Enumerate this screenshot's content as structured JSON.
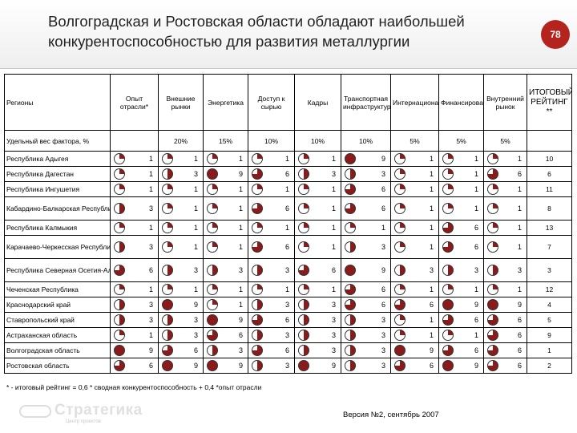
{
  "slide": {
    "title": "Волгоградская и Ростовская области обладают наибольшей конкурентоспособностью для развития металлургии",
    "page_number": "78",
    "footnote": "* - итоговый рейтинг = 0,6 * сводная конкурентоспособность + 0,4 *опыт отрасли",
    "version": "Версия №2, сентябрь 2007",
    "logo_text": "Стратегика",
    "logo_sub": "Центр проектов",
    "pie_fill_color": "#8b1a1a"
  },
  "table": {
    "region_header": "Регионы",
    "headers": [
      "Опыт отрасли*",
      "Внешние рынки",
      "Энергетика",
      "Доступ к сырью",
      "Кадры",
      "Транспортная инфраструктура",
      "Интернационализация",
      "Финансирование",
      "Внутренний рынок"
    ],
    "itog_header": "ИТОГОВЫЙ РЕЙТИНГ **",
    "weight_label": "Удельный вес фактора, %",
    "weights": [
      "",
      "20%",
      "15%",
      "10%",
      "10%",
      "10%",
      "5%",
      "5%",
      "5%"
    ],
    "rows": [
      {
        "region": "Республика Адыгея",
        "values": [
          1,
          1,
          1,
          1,
          1,
          9,
          1,
          1,
          1
        ],
        "itog": "10"
      },
      {
        "region": "Республика Дагестан",
        "values": [
          1,
          3,
          9,
          6,
          3,
          3,
          1,
          1,
          6
        ],
        "itog": "6"
      },
      {
        "region": "Республика Ингушетия",
        "values": [
          1,
          1,
          1,
          1,
          1,
          6,
          1,
          1,
          1
        ],
        "itog": "11"
      },
      {
        "region": "Кабардино-Балкарская Республика",
        "values": [
          3,
          1,
          1,
          6,
          1,
          6,
          1,
          1,
          1
        ],
        "itog": "8"
      },
      {
        "region": "Республика Калмыкия",
        "values": [
          1,
          1,
          1,
          1,
          1,
          1,
          1,
          6,
          1
        ],
        "itog": "13"
      },
      {
        "region": "Карачаево-Черкесская Республика",
        "values": [
          3,
          1,
          1,
          6,
          1,
          3,
          1,
          6,
          1
        ],
        "itog": "7"
      },
      {
        "region": "Республика Северная Осетия-Алания",
        "values": [
          6,
          3,
          3,
          3,
          6,
          9,
          3,
          3,
          3
        ],
        "itog": "3"
      },
      {
        "region": "Чеченская Республика",
        "values": [
          1,
          1,
          1,
          1,
          1,
          6,
          1,
          1,
          1
        ],
        "itog": "12"
      },
      {
        "region": "Краснодарский край",
        "values": [
          3,
          9,
          1,
          3,
          3,
          6,
          6,
          9,
          9
        ],
        "itog": "4"
      },
      {
        "region": "Ставропольский край",
        "values": [
          3,
          3,
          9,
          6,
          3,
          3,
          1,
          6,
          6
        ],
        "itog": "5"
      },
      {
        "region": "Астраханская область",
        "values": [
          1,
          3,
          6,
          3,
          3,
          3,
          1,
          1,
          6
        ],
        "itog": "9"
      },
      {
        "region": "Волгоградская область",
        "values": [
          9,
          6,
          3,
          6,
          3,
          3,
          9,
          6,
          6
        ],
        "itog": "1"
      },
      {
        "region": "Ростовская область",
        "values": [
          6,
          9,
          9,
          3,
          9,
          3,
          6,
          9,
          6
        ],
        "itog": "2"
      }
    ]
  }
}
